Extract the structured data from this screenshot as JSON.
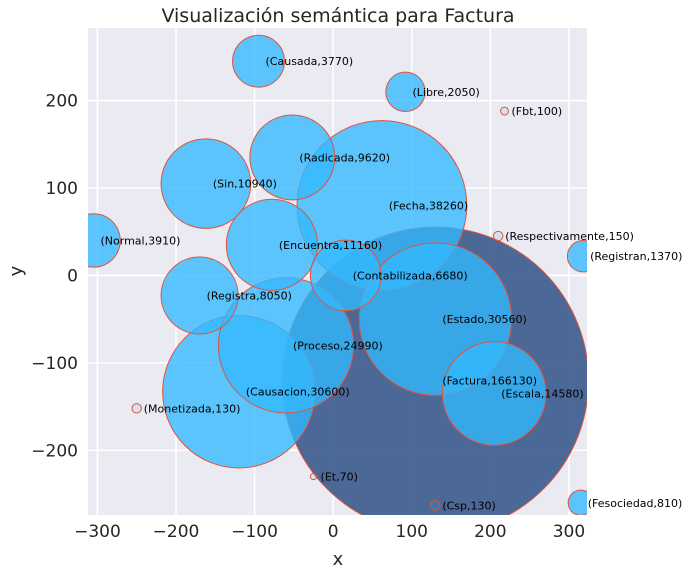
{
  "chart_data": {
    "type": "scatter",
    "title": "Visualización semántica para Factura",
    "xlabel": "x",
    "ylabel": "y",
    "xlim": [
      -312,
      323
    ],
    "ylim": [
      -274,
      283
    ],
    "xticks": [
      -300,
      -200,
      -100,
      0,
      100,
      200,
      300
    ],
    "yticks": [
      -200,
      -100,
      0,
      100,
      200
    ],
    "xtick_labels": [
      "−300",
      "−200",
      "−100",
      "0",
      "100",
      "200",
      "300"
    ],
    "ytick_labels": [
      "−200",
      "−100",
      "0",
      "100",
      "200"
    ],
    "grid": true,
    "colors": {
      "background": "#eaeaf2",
      "grid": "#ffffff",
      "bubble_fill": "#33b8ff",
      "bubble_edge": "#e0533b",
      "main_fill": "#3a5a8c"
    },
    "points": [
      {
        "label": "(Factura,166130)",
        "x": 130,
        "y": -120,
        "r": 195,
        "main": true
      },
      {
        "label": "(Fecha,38260)",
        "x": 62,
        "y": 80,
        "r": 108
      },
      {
        "label": "(Causacion,30600)",
        "x": -120,
        "y": -133,
        "r": 97
      },
      {
        "label": "(Estado,30560)",
        "x": 130,
        "y": -50,
        "r": 97
      },
      {
        "label": "(Proceso,24990)",
        "x": -60,
        "y": -80,
        "r": 86
      },
      {
        "label": "(Escala,14580)",
        "x": 205,
        "y": -135,
        "r": 66
      },
      {
        "label": "(Encuentra,11160)",
        "x": -78,
        "y": 35,
        "r": 58
      },
      {
        "label": "(Sin,10940)",
        "x": -162,
        "y": 105,
        "r": 57
      },
      {
        "label": "(Radicada,9620)",
        "x": -52,
        "y": 135,
        "r": 54
      },
      {
        "label": "(Registra,8050)",
        "x": -170,
        "y": -23,
        "r": 49
      },
      {
        "label": "(Contabilizada,6680)",
        "x": 16,
        "y": 0,
        "r": 45
      },
      {
        "label": "(Normal,3910)",
        "x": -305,
        "y": 40,
        "r": 34
      },
      {
        "label": "(Causada,3770)",
        "x": -95,
        "y": 245,
        "r": 33
      },
      {
        "label": "(Libre,2050)",
        "x": 92,
        "y": 210,
        "r": 25
      },
      {
        "label": "(Registran,1370)",
        "x": 318,
        "y": 22,
        "r": 20
      },
      {
        "label": "(Fesociedad,810)",
        "x": 315,
        "y": -260,
        "r": 16
      },
      {
        "label": "(Respectivamente,150)",
        "x": 210,
        "y": 45,
        "r": 6
      },
      {
        "label": "(Monetizada,130)",
        "x": -250,
        "y": -152,
        "r": 6
      },
      {
        "label": "(Csp,130)",
        "x": 130,
        "y": -263,
        "r": 6
      },
      {
        "label": "(Fbt,100)",
        "x": 218,
        "y": 188,
        "r": 5
      },
      {
        "label": "(Et,70)",
        "x": -25,
        "y": -230,
        "r": 4
      }
    ]
  }
}
